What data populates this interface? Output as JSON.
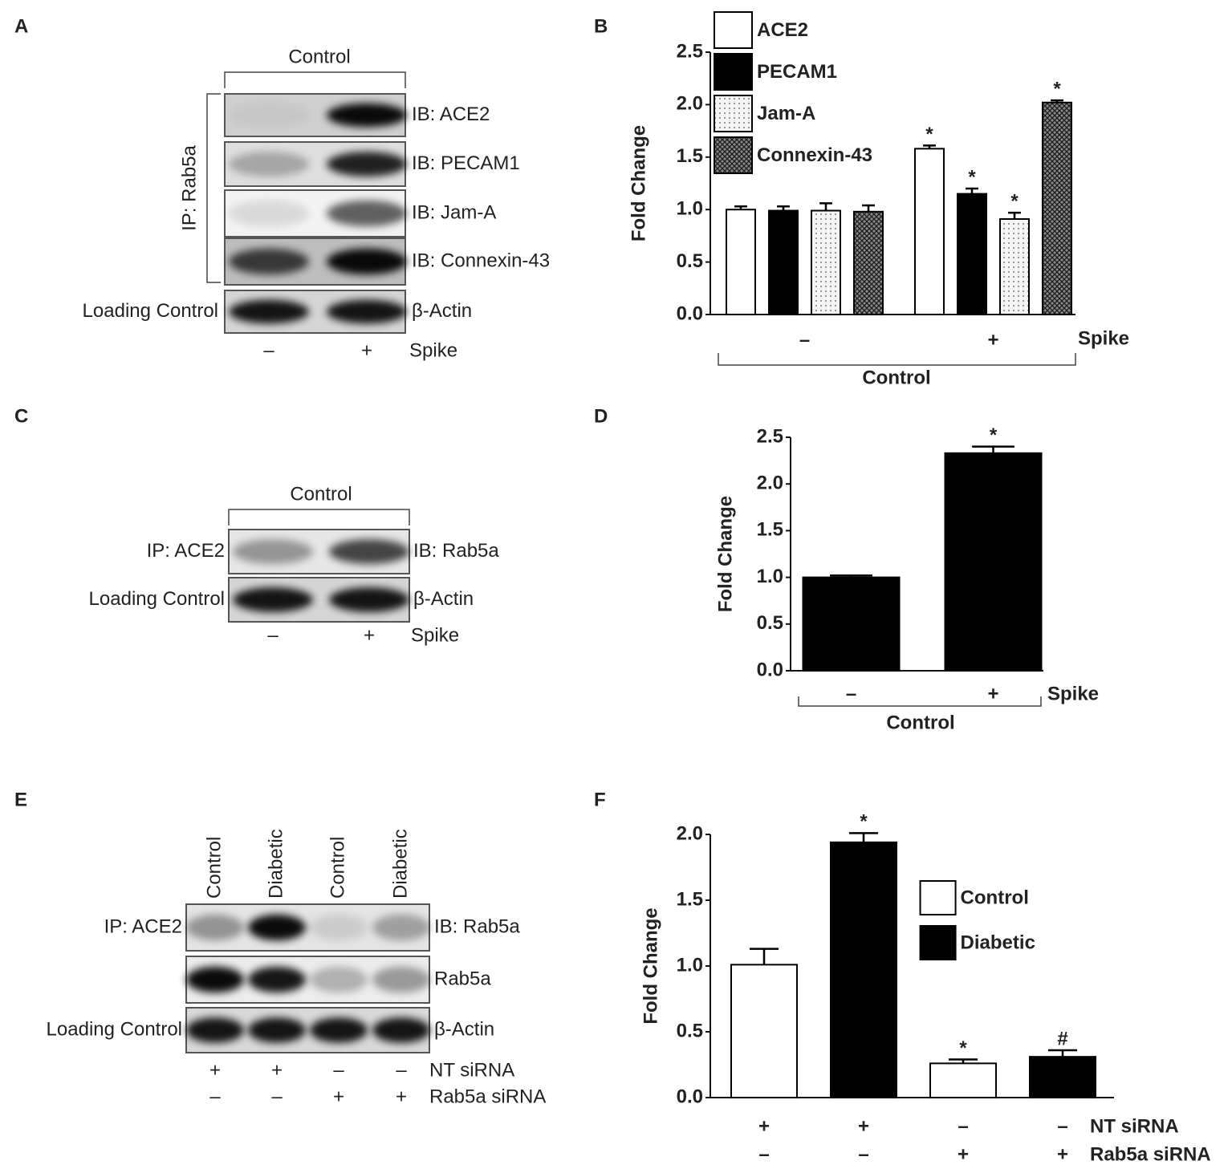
{
  "panel_letters": [
    "A",
    "B",
    "C",
    "D",
    "E",
    "F"
  ],
  "blots": [
    {
      "top_label": "Control",
      "left_group_label": "IP: Rab5a",
      "rows": [
        {
          "right": "IB: ACE2"
        },
        {
          "right": "IB: PECAM1"
        },
        {
          "right": "IB: Jam-A"
        },
        {
          "right": "IB: Connexin-43"
        },
        {
          "left": "Loading Control",
          "right": "β-Actin"
        }
      ],
      "lane_rows": [
        {
          "label": "Spike",
          "values": [
            "–",
            "+"
          ]
        }
      ]
    },
    {
      "top_label": "Control",
      "rows": [
        {
          "left": "IP: ACE2",
          "right": "IB: Rab5a"
        },
        {
          "left": "Loading Control",
          "right": "β-Actin"
        }
      ],
      "lane_rows": [
        {
          "label": "Spike",
          "values": [
            "–",
            "+"
          ]
        }
      ]
    },
    {
      "lane_headers": [
        "Control",
        "Diabetic",
        "Control",
        "Diabetic"
      ],
      "rows": [
        {
          "left": "IP: ACE2",
          "right": "IB: Rab5a"
        },
        {
          "right": "Rab5a"
        },
        {
          "left": "Loading Control",
          "right": "β-Actin"
        }
      ],
      "lane_rows": [
        {
          "label": "NT siRNA",
          "values": [
            "+",
            "+",
            "–",
            "–"
          ]
        },
        {
          "label": "Rab5a siRNA",
          "values": [
            "–",
            "–",
            "+",
            "+"
          ]
        }
      ]
    }
  ],
  "chart_data": [
    {
      "type": "bar",
      "y_label": "Fold Change",
      "x_label": "Spike",
      "group_label": "Control",
      "categories": [
        "–",
        "+"
      ],
      "series": [
        {
          "name": "ACE2",
          "color": "#ffffff",
          "values": [
            1.0,
            1.58
          ],
          "errors": [
            0.03,
            0.03
          ],
          "annotations": [
            null,
            "*"
          ]
        },
        {
          "name": "PECAM1",
          "color": "#000000",
          "values": [
            0.99,
            1.15
          ],
          "errors": [
            0.04,
            0.05
          ],
          "annotations": [
            null,
            "*"
          ]
        },
        {
          "name": "Jam-A",
          "color": "#f4f4f4",
          "pattern": "dots",
          "values": [
            0.99,
            0.91
          ],
          "errors": [
            0.07,
            0.06
          ],
          "annotations": [
            null,
            "*"
          ]
        },
        {
          "name": "Connexin-43",
          "color": "#8a8a8a",
          "pattern": "crosshatch",
          "values": [
            0.98,
            2.02
          ],
          "errors": [
            0.06,
            0.02
          ],
          "annotations": [
            null,
            "*"
          ]
        }
      ],
      "ylim": [
        0,
        2.5
      ],
      "yticks": [
        {
          "value": 0,
          "label": "0.0"
        },
        {
          "value": 0.5,
          "label": "0.5"
        },
        {
          "value": 1,
          "label": "1.0"
        },
        {
          "value": 1.5,
          "label": "1.5"
        },
        {
          "value": 2,
          "label": "2.0"
        },
        {
          "value": 2.5,
          "label": "2.5"
        }
      ],
      "legend": "top-left"
    },
    {
      "type": "bar",
      "y_label": "Fold Change",
      "x_label": "Spike",
      "group_label": "Control",
      "categories": [
        "–",
        "+"
      ],
      "color": "#000000",
      "values": [
        1.0,
        2.33
      ],
      "errors": [
        0.02,
        0.07
      ],
      "annotations": [
        null,
        "*"
      ],
      "ylim": [
        0,
        2.5
      ],
      "yticks": [
        {
          "value": 0,
          "label": "0.0"
        },
        {
          "value": 0.5,
          "label": "0.5"
        },
        {
          "value": 1,
          "label": "1.0"
        },
        {
          "value": 1.5,
          "label": "1.5"
        },
        {
          "value": 2,
          "label": "2.0"
        },
        {
          "value": 2.5,
          "label": "2.5"
        }
      ]
    },
    {
      "type": "bar",
      "y_label": "Fold Change",
      "categories": [
        null,
        null,
        null,
        null
      ],
      "condition_rows": [
        {
          "label": "NT siRNA",
          "values": [
            "+",
            "+",
            "–",
            "–"
          ]
        },
        {
          "label": "Rab5a siRNA",
          "values": [
            "–",
            "–",
            "+",
            "+"
          ]
        }
      ],
      "series": [
        {
          "name": "Control",
          "color": "#ffffff",
          "values": [
            1.01,
            null,
            0.26,
            null
          ],
          "errors": [
            0.12,
            null,
            0.03,
            null
          ],
          "annotations": [
            null,
            null,
            "*",
            null
          ]
        },
        {
          "name": "Diabetic",
          "color": "#000000",
          "values": [
            null,
            1.94,
            null,
            0.31
          ],
          "errors": [
            null,
            0.07,
            null,
            0.05
          ],
          "annotations": [
            null,
            "*",
            null,
            "#"
          ]
        }
      ],
      "ylim": [
        0,
        2.0
      ],
      "yticks": [
        {
          "value": 0,
          "label": "0.0"
        },
        {
          "value": 0.5,
          "label": "0.5"
        },
        {
          "value": 1,
          "label": "1.0"
        },
        {
          "value": 1.5,
          "label": "1.5"
        },
        {
          "value": 2,
          "label": "2.0"
        }
      ],
      "legend": "right"
    }
  ]
}
